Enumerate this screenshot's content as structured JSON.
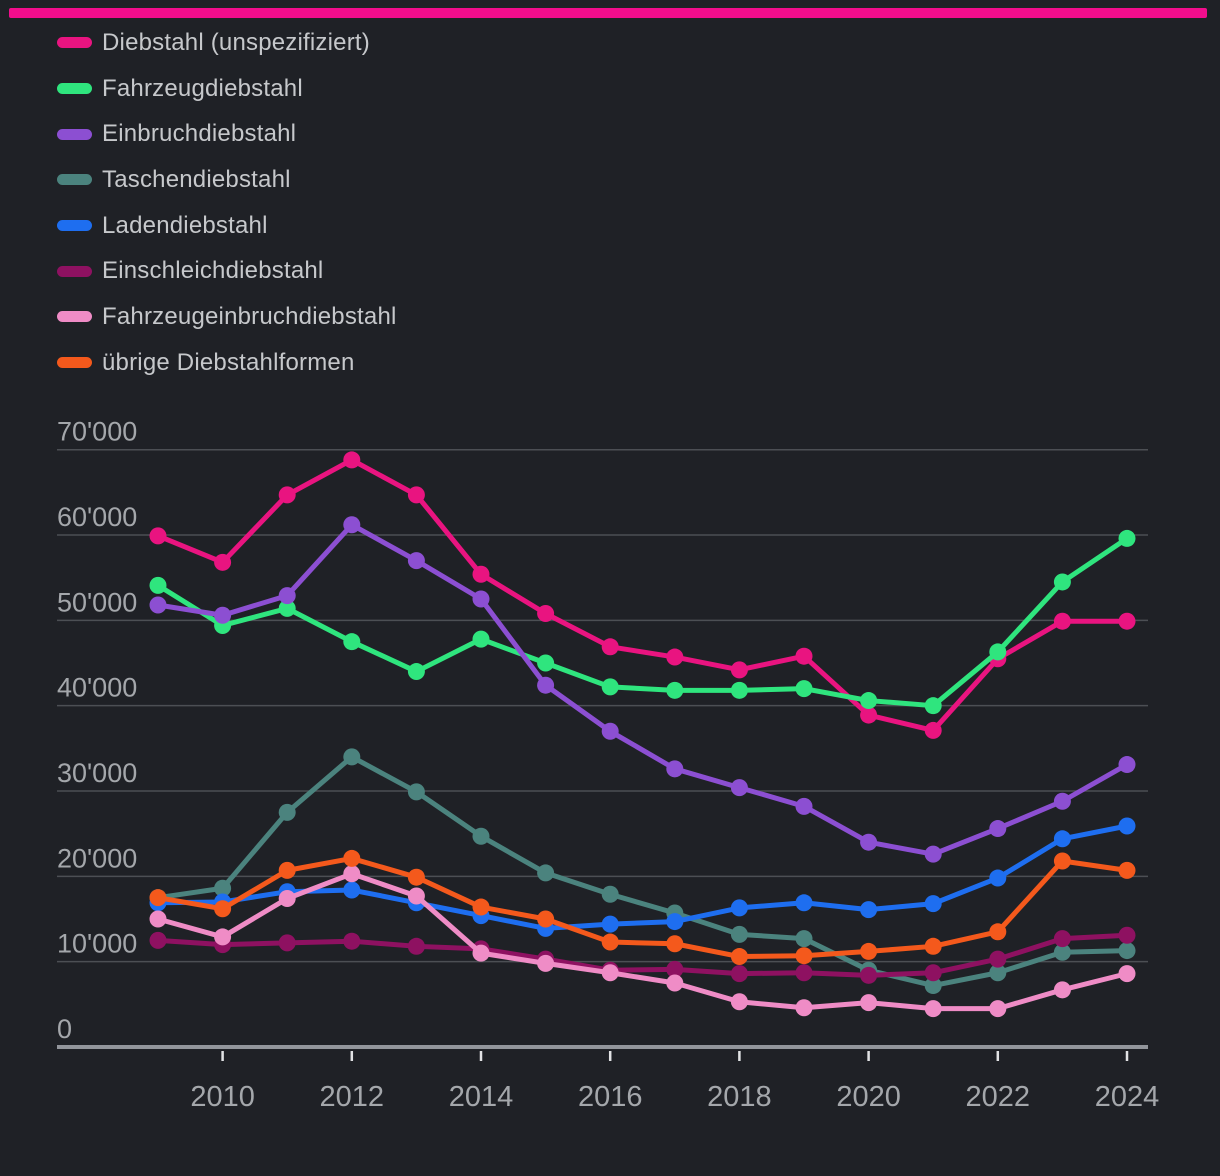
{
  "top_bar": {
    "color": "#f20d8c"
  },
  "axis": {
    "y_tick_labels": [
      "0",
      "10'000",
      "20'000",
      "30'000",
      "40'000",
      "50'000",
      "60'000",
      "70'000"
    ],
    "x_tick_labels": [
      "2010",
      "2012",
      "2014",
      "2016",
      "2018",
      "2020",
      "2022",
      "2024"
    ],
    "label_color": "#a4a7ab",
    "gridline_color": "#4c4f54",
    "axis_line_color": "#92959b",
    "tick_mark_color": "#e2e3e5"
  },
  "chart_data": {
    "type": "line",
    "x": [
      2009,
      2010,
      2011,
      2012,
      2013,
      2014,
      2015,
      2016,
      2017,
      2018,
      2019,
      2020,
      2021,
      2022,
      2023,
      2024
    ],
    "xlim": [
      2009,
      2024
    ],
    "ylim": [
      0,
      70000
    ],
    "grid": true,
    "markers": true,
    "legend_position": "top-left",
    "title": "",
    "xlabel": "",
    "ylabel": "",
    "x_ticks_shown": [
      2010,
      2012,
      2014,
      2016,
      2018,
      2020,
      2022,
      2024
    ],
    "y_ticks_shown": [
      0,
      10000,
      20000,
      30000,
      40000,
      50000,
      60000,
      70000
    ],
    "series": [
      {
        "name": "Diebstahl (unspezifiziert)",
        "color": "#e91480",
        "values": [
          59900,
          56800,
          64700,
          68800,
          64700,
          55400,
          50800,
          46900,
          45700,
          44200,
          45800,
          38900,
          37100,
          45500,
          49900,
          49900
        ]
      },
      {
        "name": "Fahrzeugdiebstahl",
        "color": "#2fe57e",
        "values": [
          54100,
          49400,
          51400,
          47500,
          44000,
          47800,
          45000,
          42200,
          41800,
          41800,
          42000,
          40600,
          40000,
          46300,
          54500,
          59600
        ]
      },
      {
        "name": "Einbruchdiebstahl",
        "color": "#8c4fd2",
        "values": [
          51800,
          50600,
          52900,
          61200,
          57000,
          52500,
          42400,
          37000,
          32600,
          30400,
          28200,
          24000,
          22600,
          25600,
          28800,
          33100
        ]
      },
      {
        "name": "Taschendiebstahl",
        "color": "#4b837e",
        "values": [
          17500,
          18600,
          27500,
          34000,
          29900,
          24700,
          20400,
          17900,
          15700,
          13200,
          12700,
          9000,
          7200,
          8700,
          11100,
          11300
        ]
      },
      {
        "name": "Ladendiebstahl",
        "color": "#1e6ef0",
        "values": [
          16900,
          17000,
          18200,
          18400,
          16900,
          15400,
          13900,
          14400,
          14700,
          16300,
          16900,
          16100,
          16800,
          19800,
          24400,
          25900
        ]
      },
      {
        "name": "Einschleichdiebstahl",
        "color": "#8e1161",
        "values": [
          12500,
          12000,
          12200,
          12400,
          11800,
          11500,
          10300,
          9000,
          9100,
          8600,
          8700,
          8400,
          8700,
          10300,
          12700,
          13100
        ]
      },
      {
        "name": "Fahrzeugeinbruchdiebstahl",
        "color": "#ef8cc6",
        "values": [
          15000,
          12900,
          17400,
          20300,
          17700,
          11000,
          9800,
          8700,
          7500,
          5300,
          4600,
          5200,
          4500,
          4500,
          6700,
          8600
        ]
      },
      {
        "name": "übrige Diebstahlformen",
        "color": "#f4591c",
        "values": [
          17500,
          16200,
          20700,
          22100,
          19900,
          16400,
          15000,
          12300,
          12100,
          10600,
          10700,
          11200,
          11800,
          13500,
          21800,
          20700
        ]
      }
    ]
  }
}
